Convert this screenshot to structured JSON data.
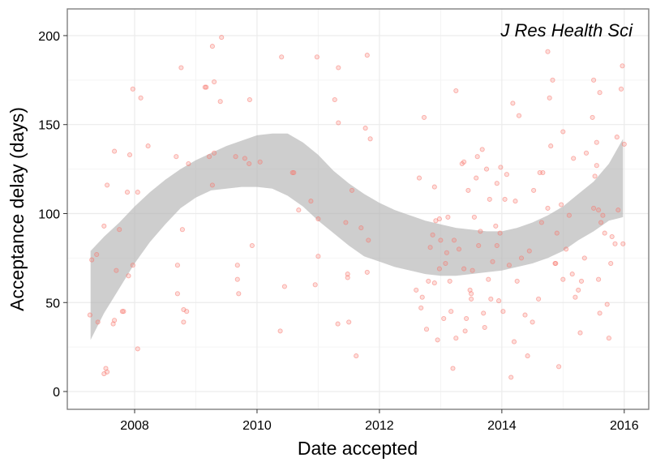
{
  "chart_data": {
    "type": "scatter",
    "title": "",
    "annotation": "J Res Health Sci",
    "xlabel": "Date accepted",
    "ylabel": "Acceptance delay (days)",
    "xlim": [
      2006.9,
      2016.4
    ],
    "ylim": [
      -10,
      215
    ],
    "x_ticks": [
      2008,
      2010,
      2012,
      2014,
      2016
    ],
    "x_tick_labels": [
      "2008",
      "2010",
      "2012",
      "2014",
      "2016"
    ],
    "y_ticks": [
      0,
      50,
      100,
      150,
      200
    ],
    "y_tick_labels": [
      "0",
      "50",
      "100",
      "150",
      "200"
    ],
    "grid": true,
    "legend": "none",
    "colors": {
      "points": "#f8766d",
      "band": "#b3b3b3",
      "grid_major": "#ebebeb",
      "grid_minor": "#f4f4f4",
      "border": "#808080"
    },
    "points": [
      [
        2007.27,
        43
      ],
      [
        2007.3,
        74
      ],
      [
        2007.38,
        77
      ],
      [
        2007.4,
        39
      ],
      [
        2007.5,
        93
      ],
      [
        2007.5,
        10
      ],
      [
        2007.53,
        13
      ],
      [
        2007.55,
        11
      ],
      [
        2007.55,
        116
      ],
      [
        2007.65,
        38
      ],
      [
        2007.67,
        40
      ],
      [
        2007.67,
        135
      ],
      [
        2007.7,
        68
      ],
      [
        2007.75,
        91
      ],
      [
        2007.8,
        45
      ],
      [
        2007.82,
        45
      ],
      [
        2007.88,
        112
      ],
      [
        2007.9,
        65
      ],
      [
        2007.92,
        133
      ],
      [
        2007.97,
        170
      ],
      [
        2007.97,
        71
      ],
      [
        2008.05,
        24
      ],
      [
        2008.05,
        112
      ],
      [
        2008.1,
        165
      ],
      [
        2008.22,
        138
      ],
      [
        2008.68,
        132
      ],
      [
        2008.7,
        71
      ],
      [
        2008.7,
        55
      ],
      [
        2008.76,
        182
      ],
      [
        2008.78,
        91
      ],
      [
        2008.8,
        46
      ],
      [
        2008.8,
        39
      ],
      [
        2008.85,
        45
      ],
      [
        2008.88,
        128
      ],
      [
        2009.15,
        171
      ],
      [
        2009.17,
        171
      ],
      [
        2009.22,
        132
      ],
      [
        2009.27,
        116
      ],
      [
        2009.27,
        194
      ],
      [
        2009.3,
        174
      ],
      [
        2009.3,
        134
      ],
      [
        2009.4,
        163
      ],
      [
        2009.42,
        199
      ],
      [
        2009.65,
        132
      ],
      [
        2009.68,
        63
      ],
      [
        2009.68,
        71
      ],
      [
        2009.7,
        55
      ],
      [
        2009.8,
        131
      ],
      [
        2009.87,
        128
      ],
      [
        2009.88,
        164
      ],
      [
        2009.92,
        82
      ],
      [
        2010.05,
        129
      ],
      [
        2010.38,
        34
      ],
      [
        2010.4,
        188
      ],
      [
        2010.45,
        59
      ],
      [
        2010.58,
        123
      ],
      [
        2010.6,
        123
      ],
      [
        2010.68,
        102
      ],
      [
        2010.88,
        107
      ],
      [
        2010.95,
        60
      ],
      [
        2010.98,
        188
      ],
      [
        2011.0,
        97
      ],
      [
        2011.0,
        76
      ],
      [
        2011.27,
        164
      ],
      [
        2011.32,
        38
      ],
      [
        2011.33,
        151
      ],
      [
        2011.33,
        182
      ],
      [
        2011.45,
        95
      ],
      [
        2011.48,
        64
      ],
      [
        2011.48,
        66
      ],
      [
        2011.5,
        39
      ],
      [
        2011.55,
        113
      ],
      [
        2011.62,
        20
      ],
      [
        2011.7,
        92
      ],
      [
        2011.77,
        148
      ],
      [
        2011.8,
        189
      ],
      [
        2011.8,
        67
      ],
      [
        2011.82,
        85
      ],
      [
        2011.85,
        142
      ],
      [
        2012.6,
        57
      ],
      [
        2012.65,
        120
      ],
      [
        2012.68,
        47
      ],
      [
        2012.7,
        53
      ],
      [
        2012.73,
        154
      ],
      [
        2012.77,
        35
      ],
      [
        2012.8,
        62
      ],
      [
        2012.83,
        81
      ],
      [
        2012.87,
        88
      ],
      [
        2012.9,
        61
      ],
      [
        2012.9,
        115
      ],
      [
        2012.92,
        96
      ],
      [
        2012.95,
        29
      ],
      [
        2012.98,
        97
      ],
      [
        2012.98,
        69
      ],
      [
        2013.0,
        85
      ],
      [
        2013.05,
        41
      ],
      [
        2013.08,
        72
      ],
      [
        2013.1,
        78
      ],
      [
        2013.12,
        98
      ],
      [
        2013.15,
        62
      ],
      [
        2013.17,
        45
      ],
      [
        2013.2,
        13
      ],
      [
        2013.22,
        85
      ],
      [
        2013.25,
        169
      ],
      [
        2013.25,
        30
      ],
      [
        2013.3,
        80
      ],
      [
        2013.35,
        128
      ],
      [
        2013.38,
        69
      ],
      [
        2013.38,
        129
      ],
      [
        2013.4,
        34
      ],
      [
        2013.42,
        41
      ],
      [
        2013.45,
        113
      ],
      [
        2013.48,
        57
      ],
      [
        2013.5,
        55
      ],
      [
        2013.5,
        52
      ],
      [
        2013.52,
        68
      ],
      [
        2013.55,
        98
      ],
      [
        2013.58,
        120
      ],
      [
        2013.6,
        132
      ],
      [
        2013.62,
        82
      ],
      [
        2013.65,
        90
      ],
      [
        2013.68,
        136
      ],
      [
        2013.7,
        44
      ],
      [
        2013.72,
        36
      ],
      [
        2013.75,
        125
      ],
      [
        2013.78,
        63
      ],
      [
        2013.8,
        108
      ],
      [
        2013.82,
        52
      ],
      [
        2013.85,
        73
      ],
      [
        2013.9,
        93
      ],
      [
        2013.92,
        117
      ],
      [
        2013.92,
        82
      ],
      [
        2013.95,
        51
      ],
      [
        2013.97,
        89
      ],
      [
        2013.98,
        126
      ],
      [
        2014.02,
        45
      ],
      [
        2014.05,
        108
      ],
      [
        2014.08,
        122
      ],
      [
        2014.12,
        71
      ],
      [
        2014.15,
        8
      ],
      [
        2014.18,
        162
      ],
      [
        2014.2,
        28
      ],
      [
        2014.22,
        107
      ],
      [
        2014.25,
        62
      ],
      [
        2014.28,
        155
      ],
      [
        2014.32,
        75
      ],
      [
        2014.38,
        43
      ],
      [
        2014.42,
        20
      ],
      [
        2014.45,
        79
      ],
      [
        2014.5,
        39
      ],
      [
        2014.52,
        113
      ],
      [
        2014.6,
        52
      ],
      [
        2014.62,
        123
      ],
      [
        2014.65,
        95
      ],
      [
        2014.67,
        123
      ],
      [
        2014.75,
        103
      ],
      [
        2014.75,
        191
      ],
      [
        2014.78,
        165
      ],
      [
        2014.8,
        138
      ],
      [
        2014.83,
        175
      ],
      [
        2014.87,
        72
      ],
      [
        2014.88,
        72
      ],
      [
        2014.9,
        89
      ],
      [
        2014.93,
        14
      ],
      [
        2014.97,
        105
      ],
      [
        2015.0,
        146
      ],
      [
        2015.0,
        63
      ],
      [
        2015.05,
        80
      ],
      [
        2015.1,
        99
      ],
      [
        2015.15,
        66
      ],
      [
        2015.17,
        131
      ],
      [
        2015.2,
        53
      ],
      [
        2015.25,
        57
      ],
      [
        2015.28,
        33
      ],
      [
        2015.3,
        62
      ],
      [
        2015.35,
        75
      ],
      [
        2015.38,
        134
      ],
      [
        2015.48,
        154
      ],
      [
        2015.5,
        175
      ],
      [
        2015.5,
        103
      ],
      [
        2015.52,
        121
      ],
      [
        2015.55,
        127
      ],
      [
        2015.55,
        140
      ],
      [
        2015.58,
        63
      ],
      [
        2015.58,
        102
      ],
      [
        2015.6,
        168
      ],
      [
        2015.6,
        44
      ],
      [
        2015.62,
        95
      ],
      [
        2015.65,
        99
      ],
      [
        2015.68,
        89
      ],
      [
        2015.72,
        49
      ],
      [
        2015.75,
        30
      ],
      [
        2015.78,
        72
      ],
      [
        2015.8,
        87
      ],
      [
        2015.85,
        83
      ],
      [
        2015.88,
        143
      ],
      [
        2015.9,
        102
      ],
      [
        2015.95,
        170
      ],
      [
        2015.97,
        183
      ],
      [
        2015.98,
        83
      ],
      [
        2016.0,
        139
      ]
    ],
    "band": {
      "x": [
        2007.28,
        2007.5,
        2007.75,
        2008.0,
        2008.25,
        2008.5,
        2008.75,
        2009.0,
        2009.25,
        2009.5,
        2009.75,
        2010.0,
        2010.25,
        2010.5,
        2010.75,
        2011.0,
        2011.25,
        2011.5,
        2011.75,
        2012.0,
        2012.25,
        2012.5,
        2012.75,
        2013.0,
        2013.25,
        2013.5,
        2013.75,
        2014.0,
        2014.25,
        2014.5,
        2014.75,
        2015.0,
        2015.25,
        2015.5,
        2015.75,
        2015.98
      ],
      "upper": [
        79,
        87,
        95,
        104,
        112,
        119,
        125,
        130,
        134,
        138,
        141,
        144,
        145,
        145,
        140,
        133,
        124,
        117,
        111,
        106,
        102,
        99,
        96,
        94,
        92,
        91,
        90,
        90,
        92,
        95,
        99,
        104,
        111,
        118,
        128,
        142
      ],
      "lower": [
        29,
        44,
        58,
        72,
        84,
        94,
        103,
        109,
        113,
        114,
        115,
        115,
        114,
        110,
        104,
        96,
        89,
        82,
        76,
        73,
        70,
        68,
        66,
        65,
        65,
        66,
        67,
        68,
        70,
        72,
        75,
        79,
        85,
        90,
        96,
        98
      ]
    }
  }
}
